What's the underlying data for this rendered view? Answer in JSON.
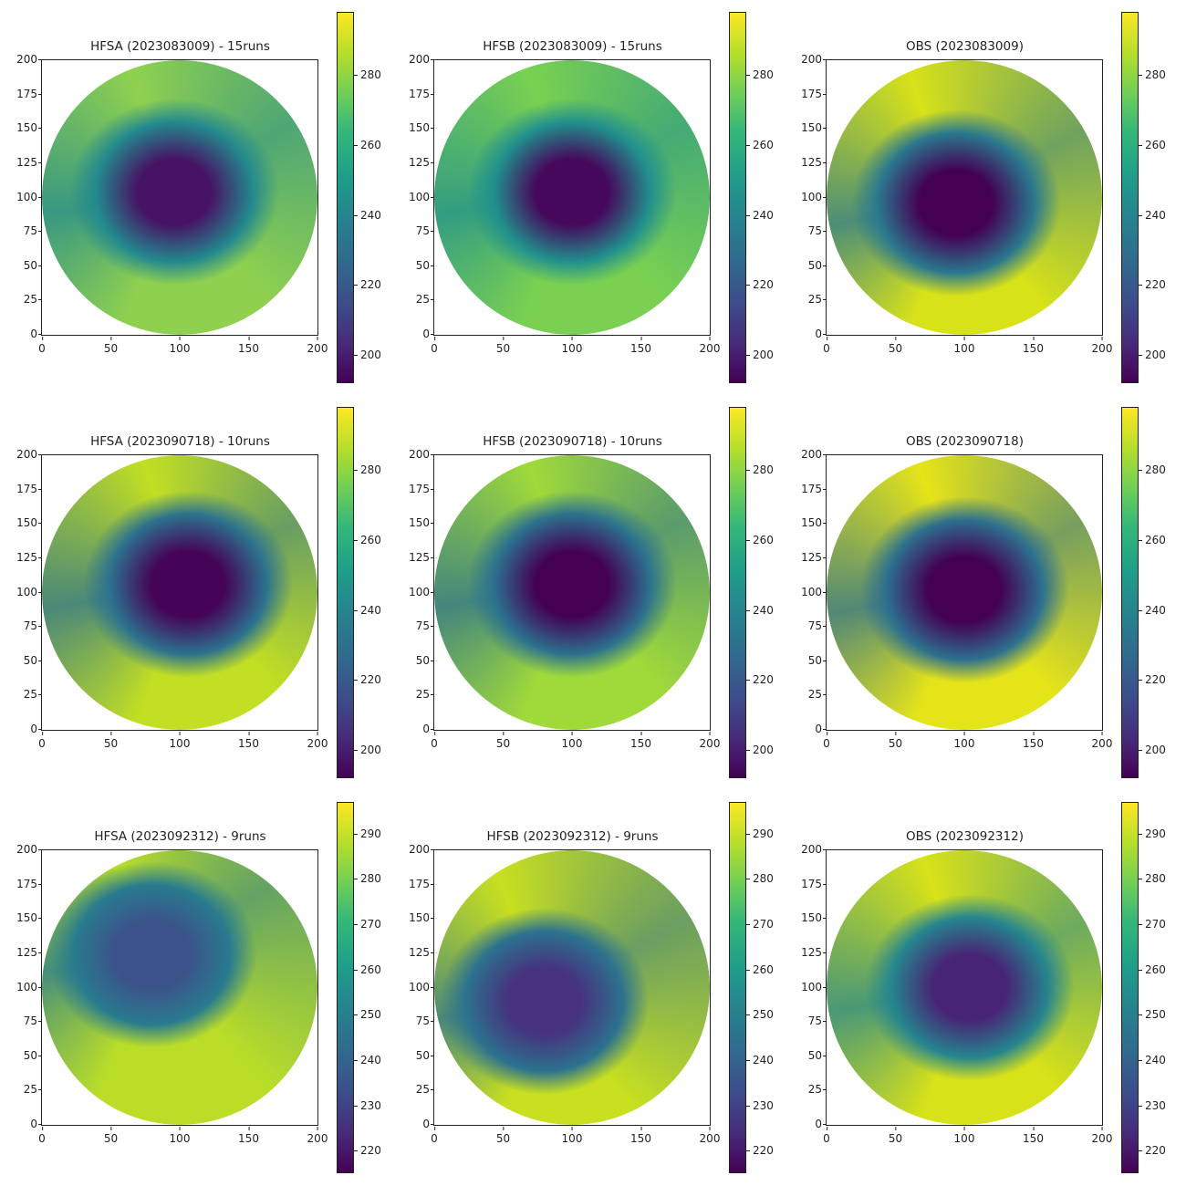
{
  "figure": {
    "rows": 3,
    "cols": 3,
    "colormap": "viridis"
  },
  "axes_ticks": {
    "x": [
      "0",
      "50",
      "100",
      "150",
      "200"
    ],
    "y": [
      "0",
      "25",
      "50",
      "75",
      "100",
      "125",
      "150",
      "175",
      "200"
    ]
  },
  "panels": [
    {
      "title": "HFSA (2023083009) - 15runs",
      "cbar_ticks": [
        "200",
        "220",
        "240",
        "260",
        "280"
      ],
      "cbar_range": [
        192,
        298
      ],
      "eye": [
        48,
        48
      ],
      "outer": "#8fd14f",
      "mid": "#23898e",
      "core": "#471365"
    },
    {
      "title": "HFSB (2023083009) - 15runs",
      "cbar_ticks": [
        "200",
        "220",
        "240",
        "260",
        "280"
      ],
      "cbar_range": [
        192,
        298
      ],
      "eye": [
        50,
        48
      ],
      "outer": "#7ad151",
      "mid": "#21908d",
      "core": "#46085c"
    },
    {
      "title": "OBS (2023083009)",
      "cbar_ticks": [
        "200",
        "220",
        "240",
        "260",
        "280"
      ],
      "cbar_range": [
        192,
        298
      ],
      "eye": [
        47,
        52
      ],
      "outer": "#d8e219",
      "mid": "#2a788e",
      "core": "#440154"
    },
    {
      "title": "HFSA (2023090718) - 10runs",
      "cbar_ticks": [
        "200",
        "220",
        "240",
        "260",
        "280"
      ],
      "cbar_range": [
        192,
        298
      ],
      "eye": [
        53,
        47
      ],
      "outer": "#c2df23",
      "mid": "#2c728e",
      "core": "#450457"
    },
    {
      "title": "HFSB (2023090718) - 10runs",
      "cbar_ticks": [
        "200",
        "220",
        "240",
        "260",
        "280"
      ],
      "cbar_range": [
        192,
        298
      ],
      "eye": [
        50,
        47
      ],
      "outer": "#9fda3a",
      "mid": "#2c718e",
      "core": "#440154"
    },
    {
      "title": "OBS (2023090718)",
      "cbar_ticks": [
        "200",
        "220",
        "240",
        "260",
        "280"
      ],
      "cbar_range": [
        192,
        298
      ],
      "eye": [
        50,
        49
      ],
      "outer": "#e5e419",
      "mid": "#2d708e",
      "core": "#440154"
    },
    {
      "title": "HFSA (2023092312) - 9runs",
      "cbar_ticks": [
        "220",
        "230",
        "240",
        "250",
        "260",
        "270",
        "280",
        "290"
      ],
      "cbar_range": [
        215,
        297
      ],
      "eye": [
        40,
        38
      ],
      "outer": "#bade28",
      "mid": "#297b8e",
      "core": "#3b528b"
    },
    {
      "title": "HFSB (2023092312) - 9runs",
      "cbar_ticks": [
        "220",
        "230",
        "240",
        "250",
        "260",
        "270",
        "280",
        "290"
      ],
      "cbar_range": [
        215,
        297
      ],
      "eye": [
        40,
        55
      ],
      "outer": "#c8e020",
      "mid": "#2c728e",
      "core": "#46327e"
    },
    {
      "title": "OBS (2023092312)",
      "cbar_ticks": [
        "220",
        "230",
        "240",
        "250",
        "260",
        "270",
        "280",
        "290"
      ],
      "cbar_range": [
        215,
        297
      ],
      "eye": [
        52,
        50
      ],
      "outer": "#d8e219",
      "mid": "#25858e",
      "core": "#482475"
    }
  ],
  "chart_data": [
    {
      "type": "heatmap",
      "title": "HFSA (2023083009) - 15runs",
      "xlim": [
        0,
        200
      ],
      "ylim": [
        0,
        200
      ],
      "colorbar": {
        "min": 192,
        "max": 298,
        "ticks": [
          200,
          220,
          240,
          260,
          280
        ]
      },
      "center": [
        100,
        100
      ],
      "min_value_approx": 195
    },
    {
      "type": "heatmap",
      "title": "HFSB (2023083009) - 15runs",
      "xlim": [
        0,
        200
      ],
      "ylim": [
        0,
        200
      ],
      "colorbar": {
        "min": 192,
        "max": 298,
        "ticks": [
          200,
          220,
          240,
          260,
          280
        ]
      },
      "center": [
        100,
        100
      ],
      "min_value_approx": 195
    },
    {
      "type": "heatmap",
      "title": "OBS (2023083009)",
      "xlim": [
        0,
        200
      ],
      "ylim": [
        0,
        200
      ],
      "colorbar": {
        "min": 192,
        "max": 298,
        "ticks": [
          200,
          220,
          240,
          260,
          280
        ]
      },
      "center": [
        95,
        95
      ],
      "min_value_approx": 192
    },
    {
      "type": "heatmap",
      "title": "HFSA (2023090718) - 10runs",
      "xlim": [
        0,
        200
      ],
      "ylim": [
        0,
        200
      ],
      "colorbar": {
        "min": 192,
        "max": 298,
        "ticks": [
          200,
          220,
          240,
          260,
          280
        ]
      },
      "center": [
        105,
        105
      ],
      "min_value_approx": 195
    },
    {
      "type": "heatmap",
      "title": "HFSB (2023090718) - 10runs",
      "xlim": [
        0,
        200
      ],
      "ylim": [
        0,
        200
      ],
      "colorbar": {
        "min": 192,
        "max": 298,
        "ticks": [
          200,
          220,
          240,
          260,
          280
        ]
      },
      "center": [
        100,
        105
      ],
      "min_value_approx": 193
    },
    {
      "type": "heatmap",
      "title": "OBS (2023090718)",
      "xlim": [
        0,
        200
      ],
      "ylim": [
        0,
        200
      ],
      "colorbar": {
        "min": 192,
        "max": 298,
        "ticks": [
          200,
          220,
          240,
          260,
          280
        ]
      },
      "center": [
        100,
        100
      ],
      "min_value_approx": 192
    },
    {
      "type": "heatmap",
      "title": "HFSA (2023092312) - 9runs",
      "xlim": [
        0,
        200
      ],
      "ylim": [
        0,
        200
      ],
      "colorbar": {
        "min": 215,
        "max": 297,
        "ticks": [
          220,
          230,
          240,
          250,
          260,
          270,
          280,
          290
        ]
      },
      "center": [
        80,
        120
      ],
      "min_value_approx": 218
    },
    {
      "type": "heatmap",
      "title": "HFSB (2023092312) - 9runs",
      "xlim": [
        0,
        200
      ],
      "ylim": [
        0,
        200
      ],
      "colorbar": {
        "min": 215,
        "max": 297,
        "ticks": [
          220,
          230,
          240,
          250,
          260,
          270,
          280,
          290
        ]
      },
      "center": [
        85,
        95
      ],
      "min_value_approx": 216
    },
    {
      "type": "heatmap",
      "title": "OBS (2023092312)",
      "xlim": [
        0,
        200
      ],
      "ylim": [
        0,
        200
      ],
      "colorbar": {
        "min": 215,
        "max": 297,
        "ticks": [
          220,
          230,
          240,
          250,
          260,
          270,
          280,
          290
        ]
      },
      "center": [
        105,
        105
      ],
      "min_value_approx": 216
    }
  ]
}
